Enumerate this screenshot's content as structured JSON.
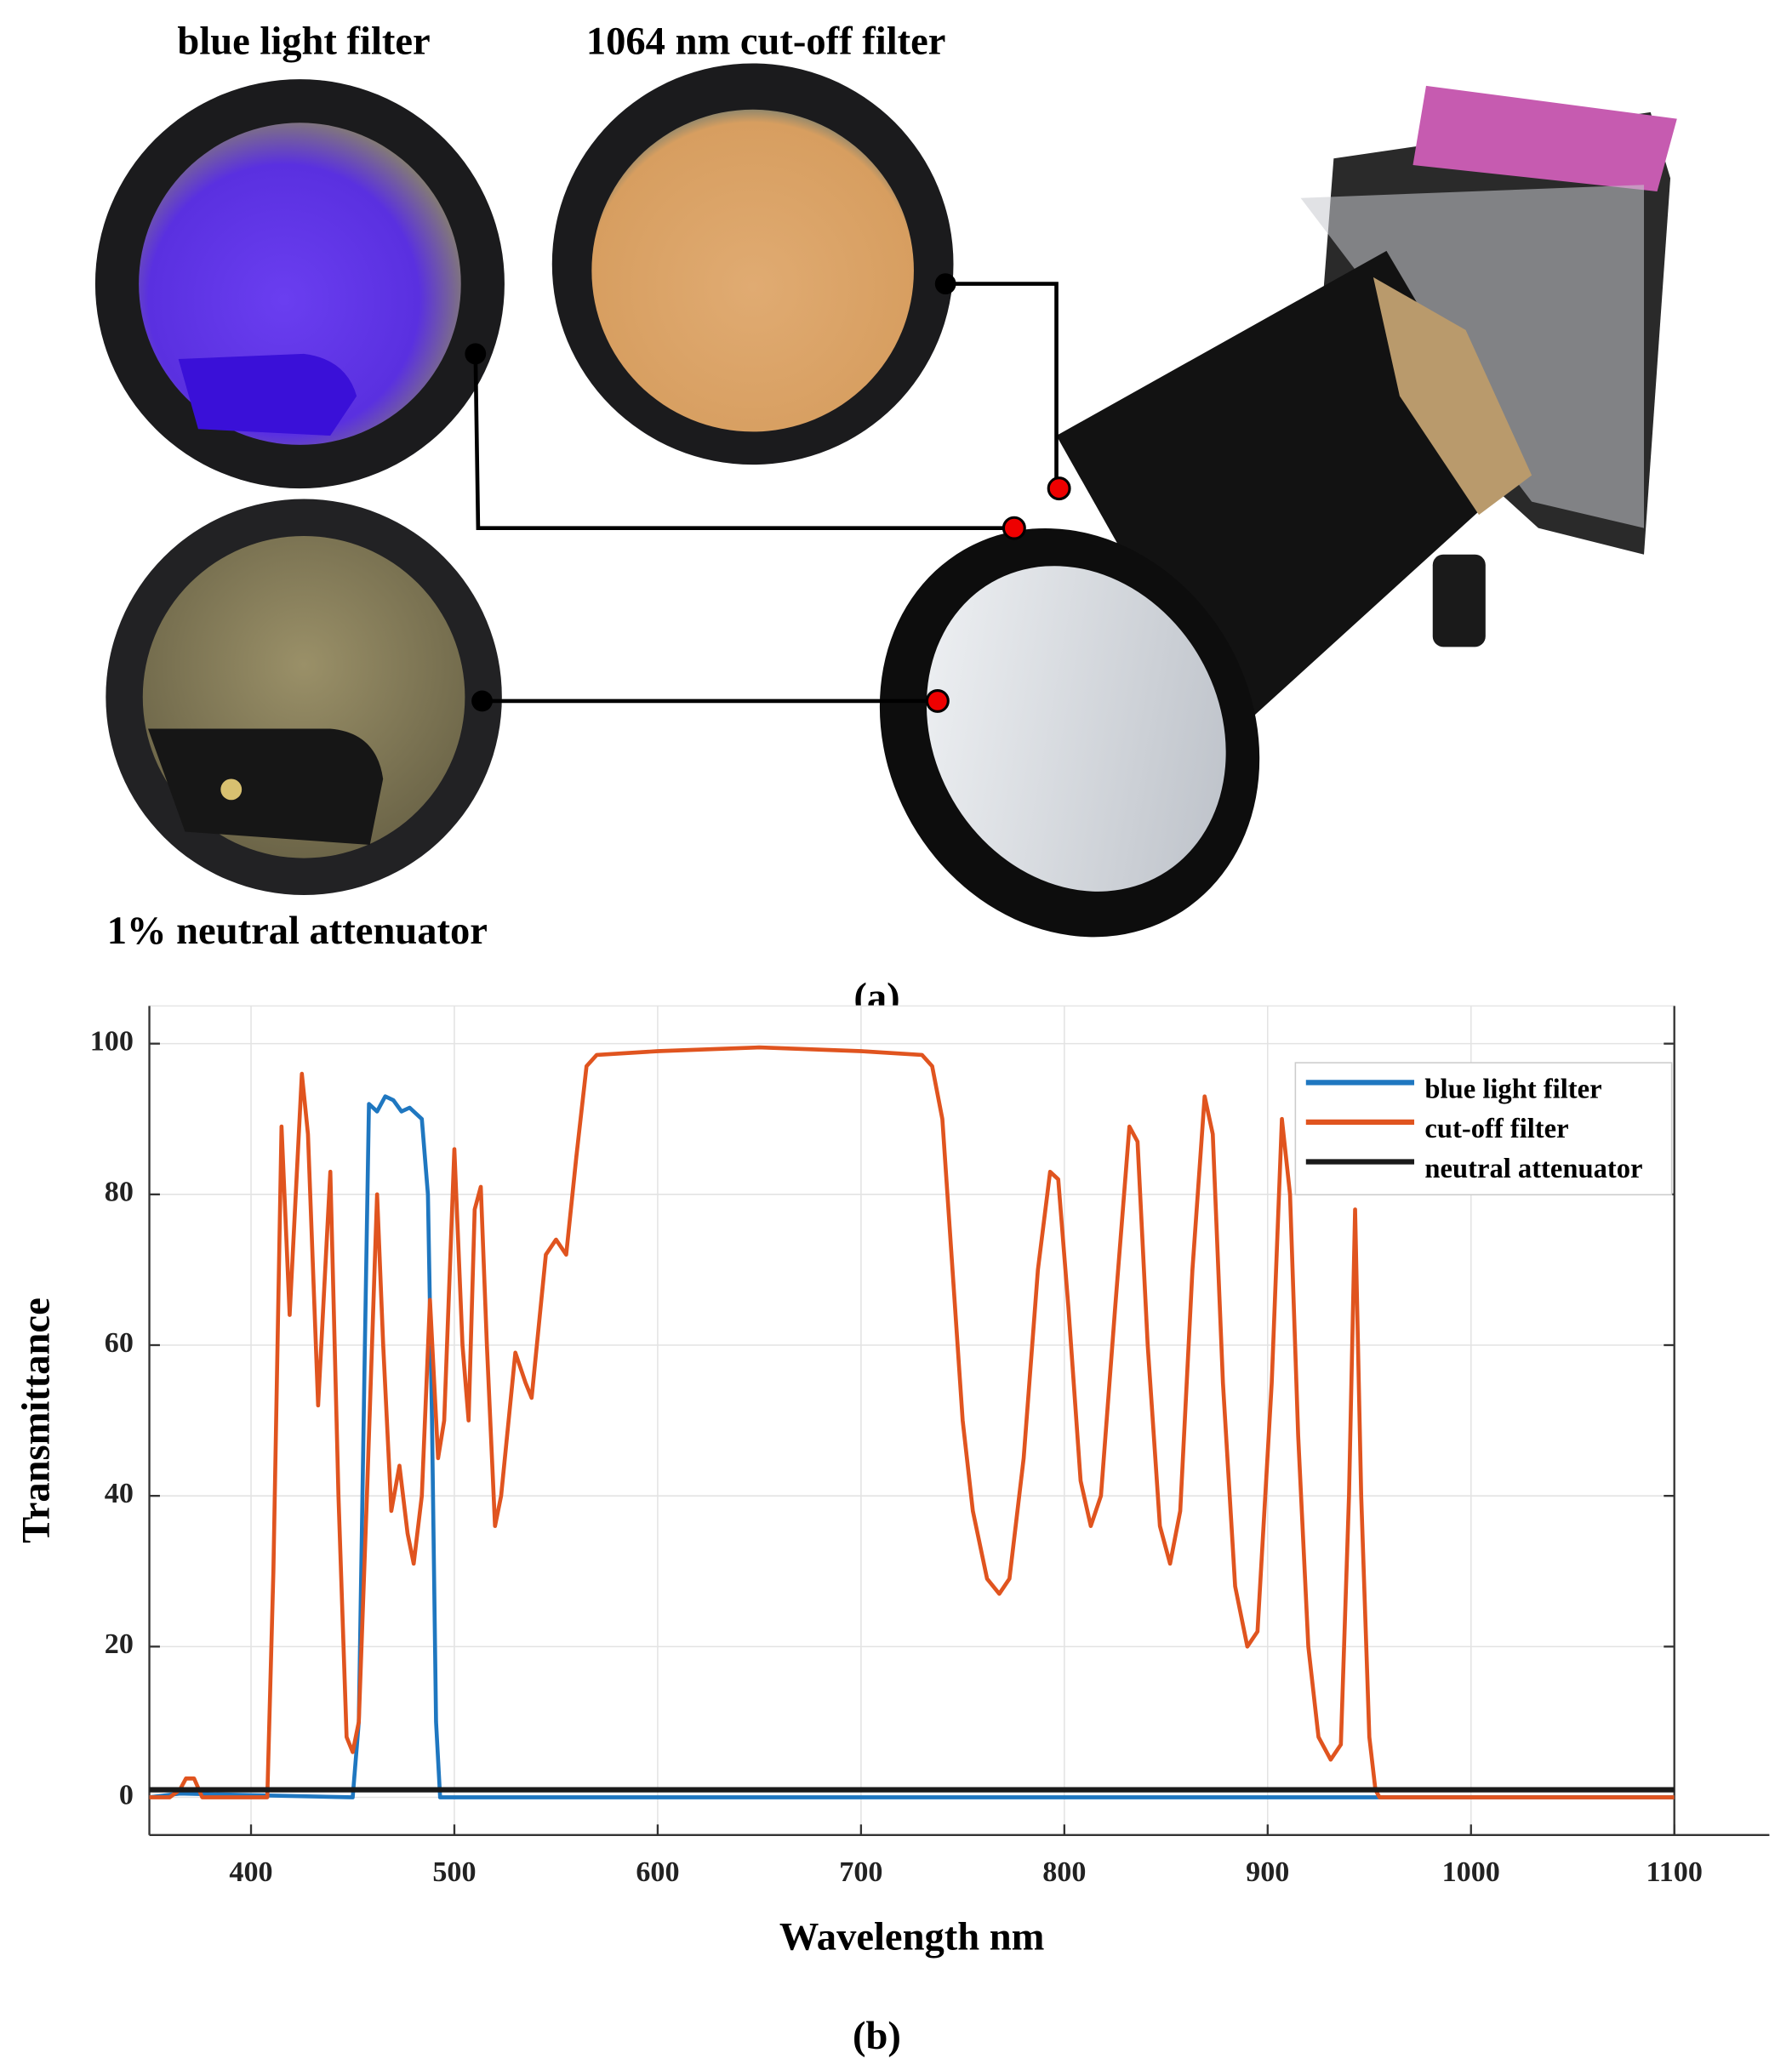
{
  "figure_labels": {
    "blue_filter": "blue light filter",
    "cutoff_filter": "1064 nm cut-off filter",
    "neutral": "1% neutral attenuator",
    "panel_a": "(a)",
    "panel_b": "(b)"
  },
  "chart_data": {
    "type": "line",
    "xlabel": "Wavelength nm",
    "ylabel": "Transmittance",
    "xlim": [
      350,
      1100
    ],
    "ylim": [
      -5,
      105
    ],
    "xticks": [
      400,
      500,
      600,
      700,
      800,
      900,
      1000,
      1100
    ],
    "yticks": [
      0,
      20,
      40,
      60,
      80,
      100
    ],
    "grid": true,
    "legend": "upper right",
    "series": [
      {
        "name": "blue light filter",
        "color": "#1f77c0",
        "x": [
          350,
          365,
          450,
          453,
          456,
          458,
          462,
          466,
          470,
          474,
          478,
          484,
          487,
          489,
          491,
          493,
          1100
        ],
        "values": [
          0,
          0.5,
          0,
          10,
          60,
          92,
          91,
          93,
          92.5,
          91,
          91.5,
          90,
          80,
          50,
          10,
          0,
          0
        ]
      },
      {
        "name": "cut-off filter",
        "color": "#e0541f",
        "x": [
          350,
          360,
          365,
          368,
          372,
          376,
          408,
          411,
          415,
          419,
          425,
          428,
          433,
          439,
          443,
          447,
          450,
          453,
          457,
          462,
          465,
          469,
          473,
          477,
          480,
          484,
          488,
          492,
          495,
          500,
          504,
          507,
          510,
          513,
          516,
          520,
          523,
          530,
          535,
          538,
          545,
          550,
          555,
          560,
          565,
          570,
          600,
          650,
          700,
          730,
          735,
          740,
          745,
          750,
          755,
          762,
          768,
          773,
          780,
          787,
          793,
          797,
          802,
          808,
          813,
          818,
          825,
          832,
          836,
          841,
          847,
          852,
          857,
          863,
          869,
          873,
          878,
          884,
          890,
          895,
          902,
          907,
          911,
          915,
          920,
          925,
          931,
          936,
          940,
          943,
          946,
          950,
          953,
          955,
          1100
        ],
        "values": [
          0,
          0,
          1,
          2.5,
          2.5,
          0,
          0,
          30,
          89,
          64,
          96,
          88,
          52,
          83,
          40,
          8,
          6,
          10,
          40,
          80,
          60,
          38,
          44,
          35,
          31,
          40,
          66,
          45,
          50,
          86,
          60,
          50,
          78,
          81,
          60,
          36,
          40,
          59,
          55,
          53,
          72,
          74,
          72,
          85,
          97,
          98.5,
          99,
          99.5,
          99,
          98.5,
          97,
          90,
          70,
          50,
          38,
          29,
          27,
          29,
          45,
          70,
          83,
          82,
          65,
          42,
          36,
          40,
          65,
          89,
          87,
          60,
          36,
          31,
          38,
          70,
          93,
          88,
          55,
          28,
          20,
          22,
          55,
          90,
          80,
          48,
          20,
          8,
          5,
          7,
          40,
          78,
          40,
          8,
          1,
          0,
          0
        ]
      },
      {
        "name": "neutral attenuator",
        "color": "#1a1a1a",
        "x": [
          350,
          1100
        ],
        "values": [
          1,
          1
        ]
      }
    ]
  }
}
